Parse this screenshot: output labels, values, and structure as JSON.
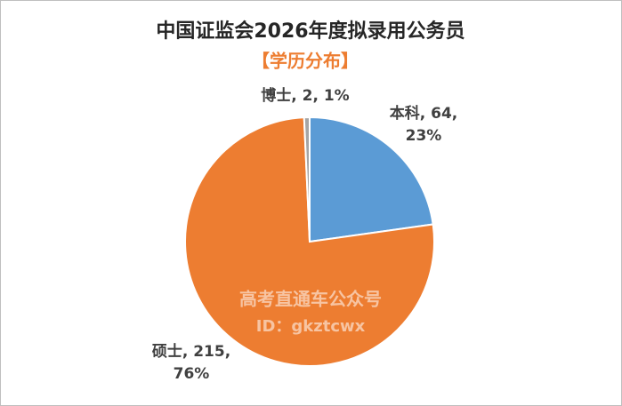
{
  "chart_data": {
    "type": "pie",
    "title": "中国证监会2026年度拟录用公务员",
    "subtitle": "【学历分布】",
    "categories": [
      "本科",
      "硕士",
      "博士"
    ],
    "values": [
      64,
      215,
      2
    ],
    "percents": [
      23,
      76,
      1
    ],
    "value_labels": [
      [
        "本科, 64,",
        "23%"
      ],
      [
        "硕士, 215,",
        "76%"
      ],
      [
        "博士, 2, 1%"
      ]
    ],
    "colors": [
      "#5b9bd5",
      "#ed7d31",
      "#a5a5a5"
    ],
    "watermark": [
      "高考直通车公众号",
      "ID：gkztcwx"
    ]
  }
}
